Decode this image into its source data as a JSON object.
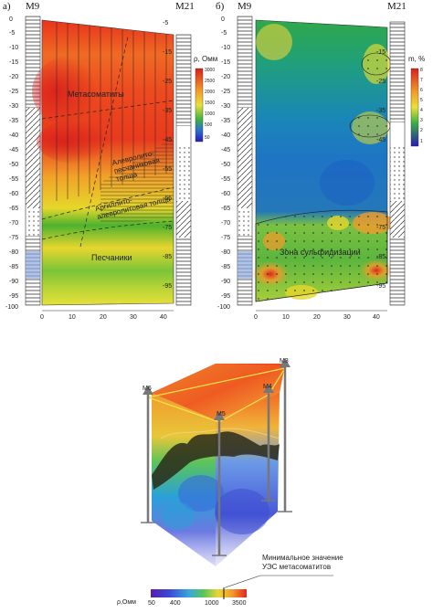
{
  "panel_a": {
    "letter": "а)",
    "well_left": "М9",
    "well_right": "М21",
    "depth_ticks": [
      "0",
      "-5",
      "-10",
      "-15",
      "-20",
      "-25",
      "-30",
      "-35",
      "-40",
      "-45",
      "-50",
      "-55",
      "-60",
      "-65",
      "-70",
      "-75",
      "-80",
      "-85",
      "-90",
      "-95",
      "-100"
    ],
    "x_ticks": [
      "0",
      "10",
      "20",
      "30",
      "40"
    ],
    "legend_title": "ρ, Омм",
    "legend_values": [
      "3000",
      "2500",
      "2000",
      "1500",
      "1000",
      "500",
      "50"
    ],
    "labels": {
      "metasomatites": "Метасоматиты",
      "aleuro": "Алевролито-песчаниковая толща",
      "argillite": "Аргиллито-алевролитовая толща",
      "sandstones": "Песчаники"
    }
  },
  "panel_b": {
    "letter": "б)",
    "well_left": "М9",
    "well_right": "М21",
    "depth_ticks": [
      "0",
      "-5",
      "-10",
      "-15",
      "-20",
      "-25",
      "-30",
      "-35",
      "-40",
      "-45",
      "-50",
      "-55",
      "-60",
      "-65",
      "-70",
      "-75",
      "-80",
      "-85",
      "-90",
      "-95",
      "-100"
    ],
    "x_ticks": [
      "0",
      "10",
      "20",
      "30",
      "40"
    ],
    "legend_title": "m, %",
    "legend_values": [
      "8",
      "7",
      "6",
      "5",
      "4",
      "3",
      "2",
      "1"
    ],
    "labels": {
      "sulfide_zone": "Зона сульфидизации"
    }
  },
  "model_3d": {
    "wells": [
      "М6",
      "М5",
      "М4",
      "М3"
    ],
    "annotation": "Минимальное значение УЭС метасоматитов",
    "scale_title": "ρ,Омм",
    "scale_values": [
      "50",
      "400",
      "1000",
      "3500"
    ]
  }
}
